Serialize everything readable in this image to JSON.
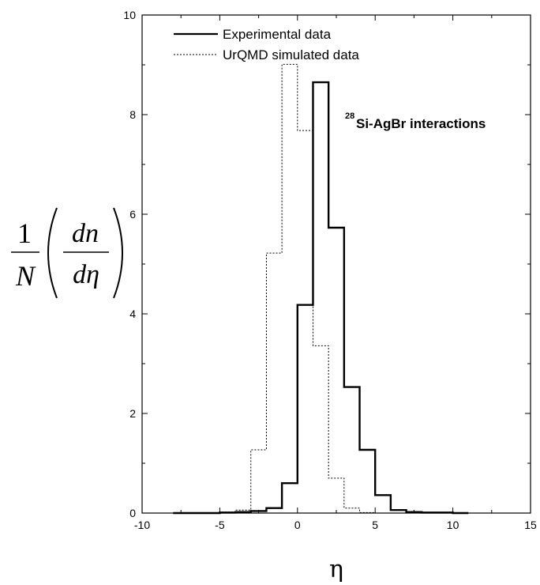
{
  "chart_data": {
    "type": "histogram",
    "xlabel": "η",
    "ylabel": {
      "numerator": "1",
      "denominator": "N",
      "inner_numerator": "dn",
      "inner_denominator": "dη"
    },
    "xlim": [
      -10,
      15
    ],
    "ylim": [
      0,
      10
    ],
    "x_ticks": [
      -10,
      -5,
      0,
      5,
      10,
      15
    ],
    "y_ticks": [
      0,
      2,
      4,
      6,
      8,
      10
    ],
    "annotation": {
      "superscript": "28",
      "text": "Si-AgBr interactions"
    },
    "legend": {
      "placement": "top-left"
    },
    "series": [
      {
        "name": "Experimental data",
        "style": "solid",
        "bin_edges": [
          -8,
          -7,
          -6,
          -5,
          -4,
          -3,
          -2,
          -1,
          0,
          1,
          2,
          3,
          4,
          5,
          6,
          7,
          8,
          9,
          10,
          11
        ],
        "values": [
          0,
          0,
          0,
          0.01,
          0.02,
          0.04,
          0.1,
          0.6,
          4.18,
          8.65,
          5.73,
          2.53,
          1.27,
          0.36,
          0.06,
          0.02,
          0.01,
          0.01,
          0.0
        ]
      },
      {
        "name": "UrQMD simulated data",
        "style": "dotted",
        "bin_edges": [
          -5,
          -4,
          -3,
          -2,
          -1,
          0,
          1,
          2,
          3,
          4,
          5
        ],
        "values": [
          0.02,
          0.06,
          1.27,
          5.22,
          9.01,
          7.68,
          3.36,
          0.7,
          0.1,
          0.01
        ]
      }
    ]
  }
}
